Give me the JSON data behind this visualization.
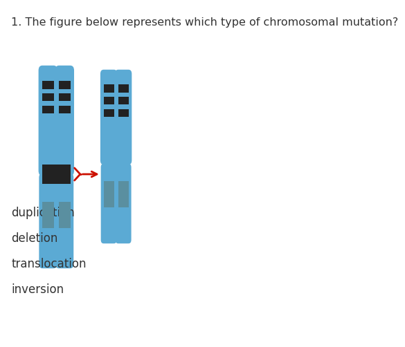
{
  "title": "1. The figure below represents which type of chromosomal mutation?",
  "title_fontsize": 11.5,
  "title_color": "#333333",
  "answer_options": [
    "duplication",
    "deletion",
    "translocation",
    "inversion"
  ],
  "answer_fontsize": 12,
  "chromosome_color": "#5BAAD4",
  "chromosome_shadow": "#4A8FB8",
  "band_dark": "#222222",
  "band_gray": "#5A8FA0",
  "arrow_color": "#cc1100",
  "bg_color": "#ffffff"
}
